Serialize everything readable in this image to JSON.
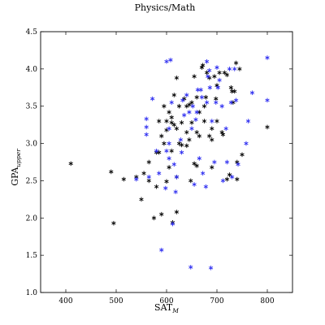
{
  "chart_data": {
    "type": "scatter",
    "title": "Physics/Math",
    "xlabel": {
      "main": "SAT",
      "sub": "M"
    },
    "ylabel": {
      "main": "GPA",
      "sub": "upper"
    },
    "xlim": [
      350,
      850
    ],
    "ylim": [
      1.0,
      4.5
    ],
    "xticks": [
      {
        "value": 400,
        "label": "400"
      },
      {
        "value": 500,
        "label": "500"
      },
      {
        "value": 600,
        "label": "600"
      },
      {
        "value": 700,
        "label": "700"
      },
      {
        "value": 800,
        "label": "800"
      }
    ],
    "yticks": [
      {
        "value": 1.0,
        "label": "1.0"
      },
      {
        "value": 1.5,
        "label": "1.5"
      },
      {
        "value": 2.0,
        "label": "2.0"
      },
      {
        "value": 2.5,
        "label": "2.5"
      },
      {
        "value": 3.0,
        "label": "3.0"
      },
      {
        "value": 3.5,
        "label": "3.5"
      },
      {
        "value": 4.0,
        "label": "4.0"
      },
      {
        "value": 4.5,
        "label": "4.5"
      }
    ],
    "grid": false,
    "legend": false,
    "marker": "asterisk",
    "series": [
      {
        "color": "#000000",
        "points": [
          [
            410,
            2.73
          ],
          [
            490,
            2.62
          ],
          [
            495,
            1.93
          ],
          [
            515,
            2.52
          ],
          [
            540,
            2.55
          ],
          [
            550,
            2.25
          ],
          [
            555,
            2.6
          ],
          [
            565,
            2.5
          ],
          [
            565,
            2.75
          ],
          [
            575,
            2.0
          ],
          [
            580,
            2.88
          ],
          [
            580,
            2.42
          ],
          [
            585,
            2.88
          ],
          [
            585,
            3.3
          ],
          [
            590,
            3.1
          ],
          [
            590,
            2.05
          ],
          [
            595,
            3.0
          ],
          [
            595,
            3.5
          ],
          [
            600,
            3.3
          ],
          [
            600,
            3.18
          ],
          [
            600,
            2.49
          ],
          [
            605,
            3.42
          ],
          [
            605,
            2.68
          ],
          [
            610,
            3.35
          ],
          [
            610,
            3.28
          ],
          [
            610,
            2.9
          ],
          [
            612,
            1.94
          ],
          [
            615,
            3.65
          ],
          [
            615,
            3.25
          ],
          [
            620,
            3.88
          ],
          [
            620,
            3.2
          ],
          [
            620,
            2.55
          ],
          [
            620,
            2.08
          ],
          [
            625,
            3.0
          ],
          [
            625,
            3.5
          ],
          [
            630,
            3.28
          ],
          [
            630,
            2.98
          ],
          [
            635,
            3.6
          ],
          [
            640,
            3.15
          ],
          [
            640,
            2.97
          ],
          [
            640,
            3.5
          ],
          [
            645,
            3.52
          ],
          [
            645,
            3.05
          ],
          [
            648,
            2.5
          ],
          [
            650,
            3.28
          ],
          [
            650,
            3.55
          ],
          [
            655,
            2.73
          ],
          [
            655,
            3.9
          ],
          [
            660,
            2.7
          ],
          [
            660,
            3.15
          ],
          [
            660,
            3.62
          ],
          [
            665,
            3.1
          ],
          [
            665,
            3.42
          ],
          [
            670,
            4.02
          ],
          [
            672,
            4.05
          ],
          [
            675,
            3.5
          ],
          [
            675,
            3.3
          ],
          [
            678,
            3.62
          ],
          [
            680,
            3.95
          ],
          [
            685,
            3.88
          ],
          [
            685,
            3.1
          ],
          [
            690,
            3.2
          ],
          [
            690,
            3.05
          ],
          [
            690,
            2.68
          ],
          [
            695,
            3.9
          ],
          [
            698,
            3.6
          ],
          [
            700,
            3.78
          ],
          [
            700,
            3.3
          ],
          [
            705,
            3.95
          ],
          [
            710,
            3.15
          ],
          [
            712,
            3.12
          ],
          [
            715,
            3.95
          ],
          [
            720,
            3.92
          ],
          [
            720,
            2.52
          ],
          [
            725,
            2.58
          ],
          [
            728,
            3.75
          ],
          [
            730,
            3.7
          ],
          [
            732,
            3.55
          ],
          [
            735,
            3.7
          ],
          [
            738,
            4.08
          ],
          [
            740,
            2.75
          ],
          [
            740,
            2.52
          ],
          [
            745,
            4.0
          ],
          [
            750,
            2.85
          ],
          [
            800,
            3.22
          ]
        ]
      },
      {
        "color": "#2b2bf0",
        "points": [
          [
            540,
            2.52
          ],
          [
            560,
            3.33
          ],
          [
            560,
            3.22
          ],
          [
            560,
            3.12
          ],
          [
            565,
            2.55
          ],
          [
            572,
            3.6
          ],
          [
            580,
            2.9
          ],
          [
            585,
            2.6
          ],
          [
            590,
            1.57
          ],
          [
            598,
            2.4
          ],
          [
            600,
            2.9
          ],
          [
            600,
            4.1
          ],
          [
            605,
            3.2
          ],
          [
            605,
            3.0
          ],
          [
            605,
            2.8
          ],
          [
            608,
            4.12
          ],
          [
            610,
            3.55
          ],
          [
            612,
            1.92
          ],
          [
            615,
            2.72
          ],
          [
            618,
            2.35
          ],
          [
            620,
            2.55
          ],
          [
            628,
            3.05
          ],
          [
            630,
            2.88
          ],
          [
            632,
            3.58
          ],
          [
            635,
            3.38
          ],
          [
            640,
            3.65
          ],
          [
            645,
            3.42
          ],
          [
            648,
            1.34
          ],
          [
            650,
            3.2
          ],
          [
            652,
            3.5
          ],
          [
            655,
            2.45
          ],
          [
            658,
            3.32
          ],
          [
            660,
            3.42
          ],
          [
            662,
            3.72
          ],
          [
            665,
            2.8
          ],
          [
            668,
            3.72
          ],
          [
            670,
            3.62
          ],
          [
            672,
            2.6
          ],
          [
            678,
            2.42
          ],
          [
            680,
            4.1
          ],
          [
            680,
            3.55
          ],
          [
            682,
            3.9
          ],
          [
            685,
            3.98
          ],
          [
            686,
            3.75
          ],
          [
            688,
            1.33
          ],
          [
            690,
            3.3
          ],
          [
            695,
            2.75
          ],
          [
            698,
            3.55
          ],
          [
            700,
            4.02
          ],
          [
            702,
            3.75
          ],
          [
            705,
            3.85
          ],
          [
            710,
            3.5
          ],
          [
            712,
            2.5
          ],
          [
            718,
            3.2
          ],
          [
            720,
            2.75
          ],
          [
            725,
            4.0
          ],
          [
            728,
            3.55
          ],
          [
            730,
            2.55
          ],
          [
            735,
            4.0
          ],
          [
            738,
            3.58
          ],
          [
            742,
            2.72
          ],
          [
            758,
            3.0
          ],
          [
            762,
            3.3
          ],
          [
            770,
            3.68
          ],
          [
            800,
            4.15
          ],
          [
            800,
            3.58
          ]
        ]
      }
    ]
  }
}
